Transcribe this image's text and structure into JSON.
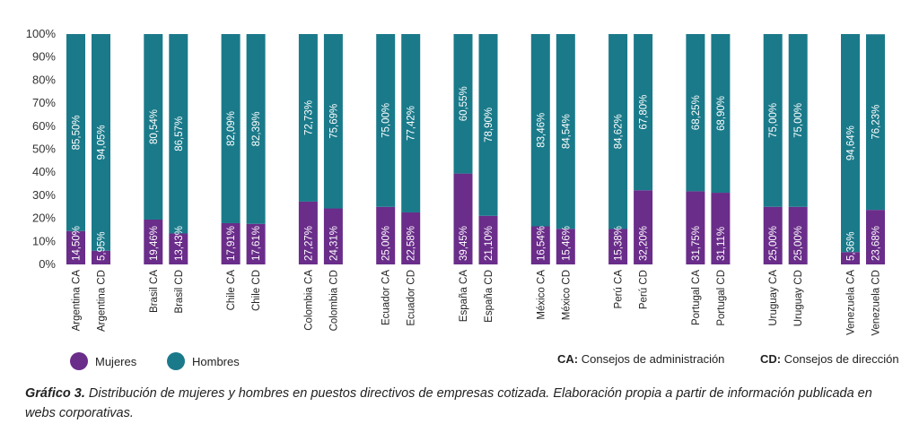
{
  "chart_data": {
    "type": "bar",
    "stacked": true,
    "categories": [
      "Argentina CA",
      "Argentina CD",
      "Brasil CA",
      "Brasil CD",
      "Chile CA",
      "Chile CD",
      "Colombia CA",
      "Colombia CD",
      "Ecuador CA",
      "Ecuador CD",
      "España CA",
      "España CD",
      "México CA",
      "México CD",
      "Perú CA",
      "Perú CD",
      "Portugal CA",
      "Portugal CD",
      "Uruguay CA",
      "Uruguay CD",
      "Venezuela CA",
      "Venezuela CD"
    ],
    "series": [
      {
        "name": "Mujeres",
        "color": "#6a2d8a",
        "values": [
          14.5,
          5.95,
          19.46,
          13.43,
          17.91,
          17.61,
          27.27,
          24.31,
          25.0,
          22.58,
          39.45,
          21.1,
          16.54,
          15.46,
          15.38,
          32.2,
          31.75,
          31.11,
          25.0,
          25.0,
          5.36,
          23.68
        ],
        "labels": [
          "14,50%",
          "5,95%",
          "19,46%",
          "13,43%",
          "17,91%",
          "17,61%",
          "27,27%",
          "24,31%",
          "25,00%",
          "22,58%",
          "39,45%",
          "21,10%",
          "16,54%",
          "15,46%",
          "15,38%",
          "32,20%",
          "31,75%",
          "31,11%",
          "25,00%",
          "25,00%",
          "5,36%",
          "23,68%"
        ]
      },
      {
        "name": "Hombres",
        "color": "#1a7a8a",
        "values": [
          85.5,
          94.05,
          80.54,
          86.57,
          82.09,
          82.39,
          72.73,
          75.69,
          75.0,
          77.42,
          60.55,
          78.9,
          83.46,
          84.54,
          84.62,
          67.8,
          68.25,
          68.9,
          75.0,
          75.0,
          94.64,
          76.23
        ],
        "labels": [
          "85,50%",
          "94,05%",
          "80,54%",
          "86,57%",
          "82,09%",
          "82,39%",
          "72,73%",
          "75,69%",
          "75,00%",
          "77,42%",
          "60,55%",
          "78,90%",
          "83,46%",
          "84,54%",
          "84,62%",
          "67,80%",
          "68,25%",
          "68,90%",
          "75,00%",
          "75,00%",
          "94,64%",
          "76,23%"
        ]
      }
    ],
    "ylim": [
      0,
      100
    ],
    "yticks": [
      "0%",
      "10%",
      "20%",
      "30%",
      "40%",
      "50%",
      "60%",
      "70%",
      "80%",
      "90%",
      "100%"
    ],
    "legend_position": "bottom-left",
    "grid": false
  },
  "legend": {
    "mujeres": "Mujeres",
    "hombres": "Hombres"
  },
  "notes": {
    "ca_key": "CA:",
    "ca_text": " Consejos de administración",
    "cd_key": "CD:",
    "cd_text": " Consejos de dirección"
  },
  "caption": {
    "label": "Gráfico 3.",
    "text": " Distribución de mujeres y hombres en puestos directivos de empresas cotizada. Elaboración propia a partir de información publicada en webs corporativas."
  }
}
